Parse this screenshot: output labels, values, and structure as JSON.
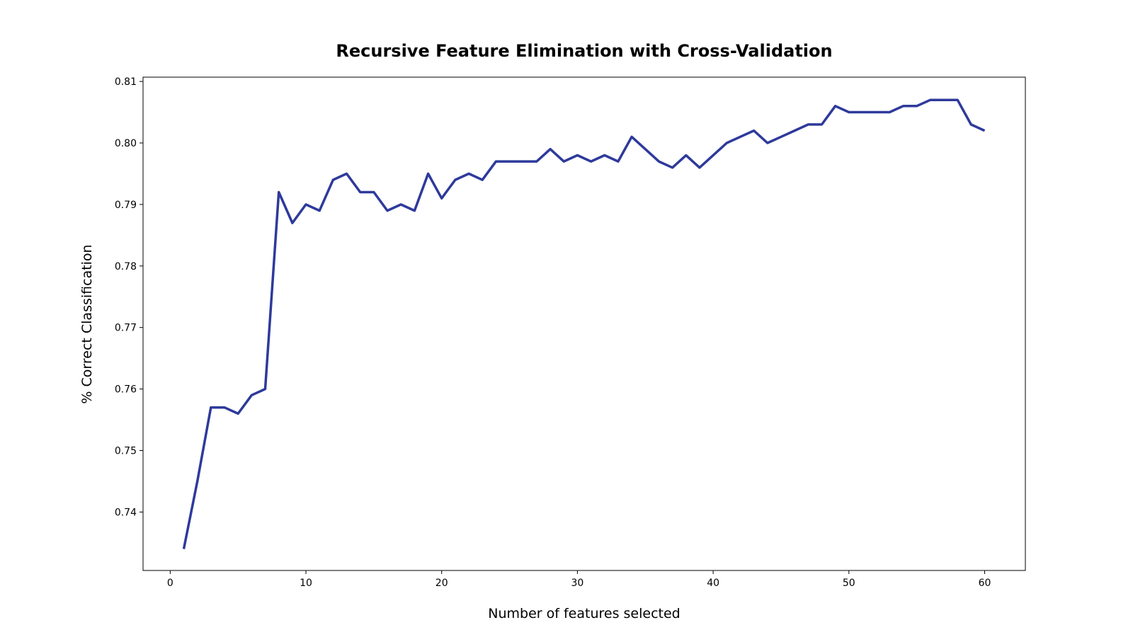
{
  "chart_data": {
    "type": "line",
    "title": "Recursive Feature Elimination with Cross-Validation",
    "xlabel": "Number of features selected",
    "ylabel": "% Correct Classification",
    "xlim": [
      -2,
      63
    ],
    "ylim": [
      0.7305,
      0.8107
    ],
    "x_ticks": [
      0,
      10,
      20,
      30,
      40,
      50,
      60
    ],
    "x_tick_labels": [
      "0",
      "10",
      "20",
      "30",
      "40",
      "50",
      "60"
    ],
    "y_ticks": [
      0.74,
      0.75,
      0.76,
      0.77,
      0.78,
      0.79,
      0.8,
      0.81
    ],
    "y_tick_labels": [
      "0.74",
      "0.75",
      "0.76",
      "0.77",
      "0.78",
      "0.79",
      "0.80",
      "0.81"
    ],
    "grid": false,
    "colors": {
      "line": "#2e3a9b"
    },
    "series": [
      {
        "x": [
          1,
          2,
          3,
          4,
          5,
          6,
          7,
          8,
          9,
          10,
          11,
          12,
          13,
          14,
          15,
          16,
          17,
          18,
          19,
          20,
          21,
          22,
          23,
          24,
          25,
          26,
          27,
          28,
          29,
          30,
          31,
          32,
          33,
          34,
          35,
          36,
          37,
          38,
          39,
          40,
          41,
          42,
          43,
          44,
          45,
          46,
          47,
          48,
          49,
          50,
          51,
          52,
          53,
          54,
          55,
          56,
          57,
          58,
          59,
          60
        ],
        "values": [
          0.734,
          0.745,
          0.757,
          0.757,
          0.756,
          0.759,
          0.76,
          0.792,
          0.787,
          0.79,
          0.789,
          0.794,
          0.795,
          0.792,
          0.792,
          0.789,
          0.79,
          0.789,
          0.795,
          0.791,
          0.794,
          0.795,
          0.794,
          0.797,
          0.797,
          0.797,
          0.797,
          0.799,
          0.797,
          0.798,
          0.797,
          0.798,
          0.797,
          0.801,
          0.799,
          0.797,
          0.796,
          0.798,
          0.796,
          0.798,
          0.8,
          0.801,
          0.802,
          0.8,
          0.801,
          0.802,
          0.803,
          0.803,
          0.806,
          0.805,
          0.805,
          0.805,
          0.805,
          0.806,
          0.806,
          0.807,
          0.807,
          0.807,
          0.803,
          0.802
        ]
      }
    ]
  }
}
